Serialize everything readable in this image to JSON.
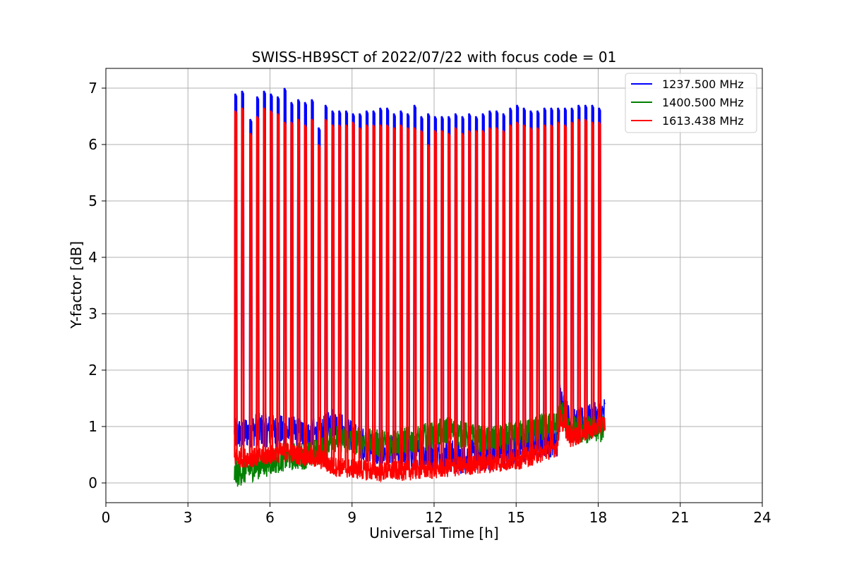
{
  "chart_data": {
    "type": "line",
    "title": "SWISS-HB9SCT of 2022/07/22 with focus code = 01",
    "xlabel": "Universal Time [h]",
    "ylabel": "Y-factor [dB]",
    "xlim": [
      0,
      24
    ],
    "ylim": [
      -0.35,
      7.35
    ],
    "xticks": [
      0,
      3,
      6,
      9,
      12,
      15,
      18,
      21,
      24
    ],
    "yticks": [
      0,
      1,
      2,
      3,
      4,
      5,
      6,
      7
    ],
    "grid": true,
    "legend_position": "top-right",
    "data_range_hours": [
      4.7,
      18.25
    ],
    "calibration_spike_times": [
      4.75,
      5.0,
      5.3,
      5.55,
      5.8,
      6.05,
      6.3,
      6.55,
      6.8,
      7.05,
      7.3,
      7.55,
      7.8,
      8.05,
      8.3,
      8.55,
      8.8,
      9.05,
      9.3,
      9.55,
      9.8,
      10.05,
      10.3,
      10.55,
      10.8,
      11.05,
      11.3,
      11.55,
      11.8,
      12.05,
      12.3,
      12.55,
      12.8,
      13.05,
      13.3,
      13.55,
      13.8,
      14.05,
      14.3,
      14.55,
      14.8,
      15.05,
      15.3,
      15.55,
      15.8,
      16.05,
      16.3,
      16.55,
      16.8,
      17.05,
      17.3,
      17.55,
      17.8,
      18.05
    ],
    "series": [
      {
        "name": "1237.500 MHz",
        "color": "#0000ff",
        "spike_peaks": [
          6.9,
          6.95,
          6.45,
          6.85,
          6.95,
          6.9,
          6.85,
          7.0,
          6.75,
          6.8,
          6.75,
          6.8,
          6.3,
          6.7,
          6.6,
          6.6,
          6.6,
          6.55,
          6.55,
          6.6,
          6.6,
          6.65,
          6.65,
          6.55,
          6.6,
          6.55,
          6.7,
          6.5,
          6.55,
          6.5,
          6.5,
          6.5,
          6.55,
          6.5,
          6.55,
          6.5,
          6.55,
          6.6,
          6.6,
          6.55,
          6.65,
          6.7,
          6.65,
          6.6,
          6.6,
          6.65,
          6.65,
          6.65,
          6.65,
          6.65,
          6.7,
          6.7,
          6.7,
          6.65
        ],
        "baseline": {
          "x": [
            4.7,
            5.5,
            6.5,
            7.5,
            8.0,
            8.2,
            9.0,
            10.0,
            11.0,
            12.0,
            13.0,
            14.0,
            15.0,
            16.0,
            16.5,
            16.6,
            17.0,
            18.0,
            18.25
          ],
          "y": [
            0.85,
            0.95,
            0.9,
            0.85,
            0.9,
            1.1,
            0.8,
            0.55,
            0.55,
            0.5,
            0.45,
            0.5,
            0.6,
            0.75,
            0.75,
            1.55,
            1.0,
            1.15,
            1.25
          ],
          "spread": 0.3
        }
      },
      {
        "name": "1400.500 MHz",
        "color": "#008000",
        "spike_peaks": [],
        "baseline": {
          "x": [
            4.7,
            5.5,
            6.5,
            7.5,
            8.0,
            8.2,
            9.0,
            10.0,
            11.0,
            12.0,
            12.5,
            13.0,
            14.0,
            15.0,
            16.0,
            16.5,
            16.6,
            17.0,
            18.0,
            18.25
          ],
          "y": [
            0.15,
            0.3,
            0.45,
            0.5,
            0.6,
            0.8,
            0.75,
            0.7,
            0.75,
            0.85,
            0.95,
            0.85,
            0.75,
            0.85,
            1.0,
            1.0,
            1.3,
            0.95,
            0.95,
            0.95
          ],
          "spread": 0.25
        }
      },
      {
        "name": "1613.438 MHz",
        "color": "#ff0000",
        "spike_peaks": [
          6.6,
          6.65,
          6.2,
          6.5,
          6.65,
          6.6,
          6.55,
          6.4,
          6.4,
          6.45,
          6.35,
          6.45,
          6.0,
          6.45,
          6.35,
          6.35,
          6.35,
          6.4,
          6.3,
          6.35,
          6.35,
          6.35,
          6.35,
          6.3,
          6.35,
          6.3,
          6.3,
          6.25,
          6.0,
          6.25,
          6.25,
          6.2,
          6.3,
          6.2,
          6.25,
          6.25,
          6.25,
          6.3,
          6.3,
          6.25,
          6.35,
          6.4,
          6.35,
          6.3,
          6.3,
          6.35,
          6.35,
          6.4,
          6.35,
          6.4,
          6.45,
          6.45,
          6.4,
          6.4
        ],
        "baseline": {
          "x": [
            4.7,
            5.5,
            6.5,
            7.5,
            8.0,
            8.2,
            9.0,
            10.0,
            11.0,
            12.0,
            13.0,
            14.0,
            15.0,
            16.0,
            16.5,
            16.6,
            17.0,
            18.0,
            18.25
          ],
          "y": [
            0.45,
            0.45,
            0.55,
            0.45,
            0.4,
            0.3,
            0.25,
            0.2,
            0.22,
            0.25,
            0.3,
            0.35,
            0.4,
            0.55,
            0.65,
            1.15,
            0.8,
            1.0,
            1.05
          ],
          "spread": 0.18
        }
      }
    ]
  }
}
